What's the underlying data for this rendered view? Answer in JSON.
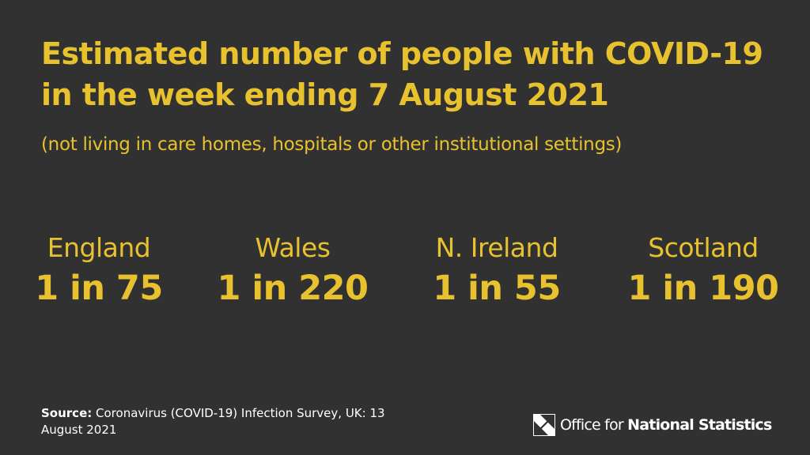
{
  "title": "Estimated number of people with COVID-19 in the week ending 7 August 2021",
  "subtitle": "(not living in care homes, hospitals or other institutional settings)",
  "stats": [
    {
      "region": "England",
      "ratio": "1 in 75"
    },
    {
      "region": "Wales",
      "ratio": "1 in 220"
    },
    {
      "region": "N. Ireland",
      "ratio": "1 in 55"
    },
    {
      "region": "Scotland",
      "ratio": "1 in 190"
    }
  ],
  "source": {
    "label": "Source:",
    "text": "Coronavirus (COVID-19) Infection Survey, UK: 13 August 2021"
  },
  "footer": {
    "org_prefix": "Office for",
    "org_bold": "National Statistics",
    "logo_icon": "ons-logo-icon"
  },
  "colors": {
    "background": "#323132",
    "accent": "#e8c22e",
    "footer_text": "#ffffff"
  }
}
